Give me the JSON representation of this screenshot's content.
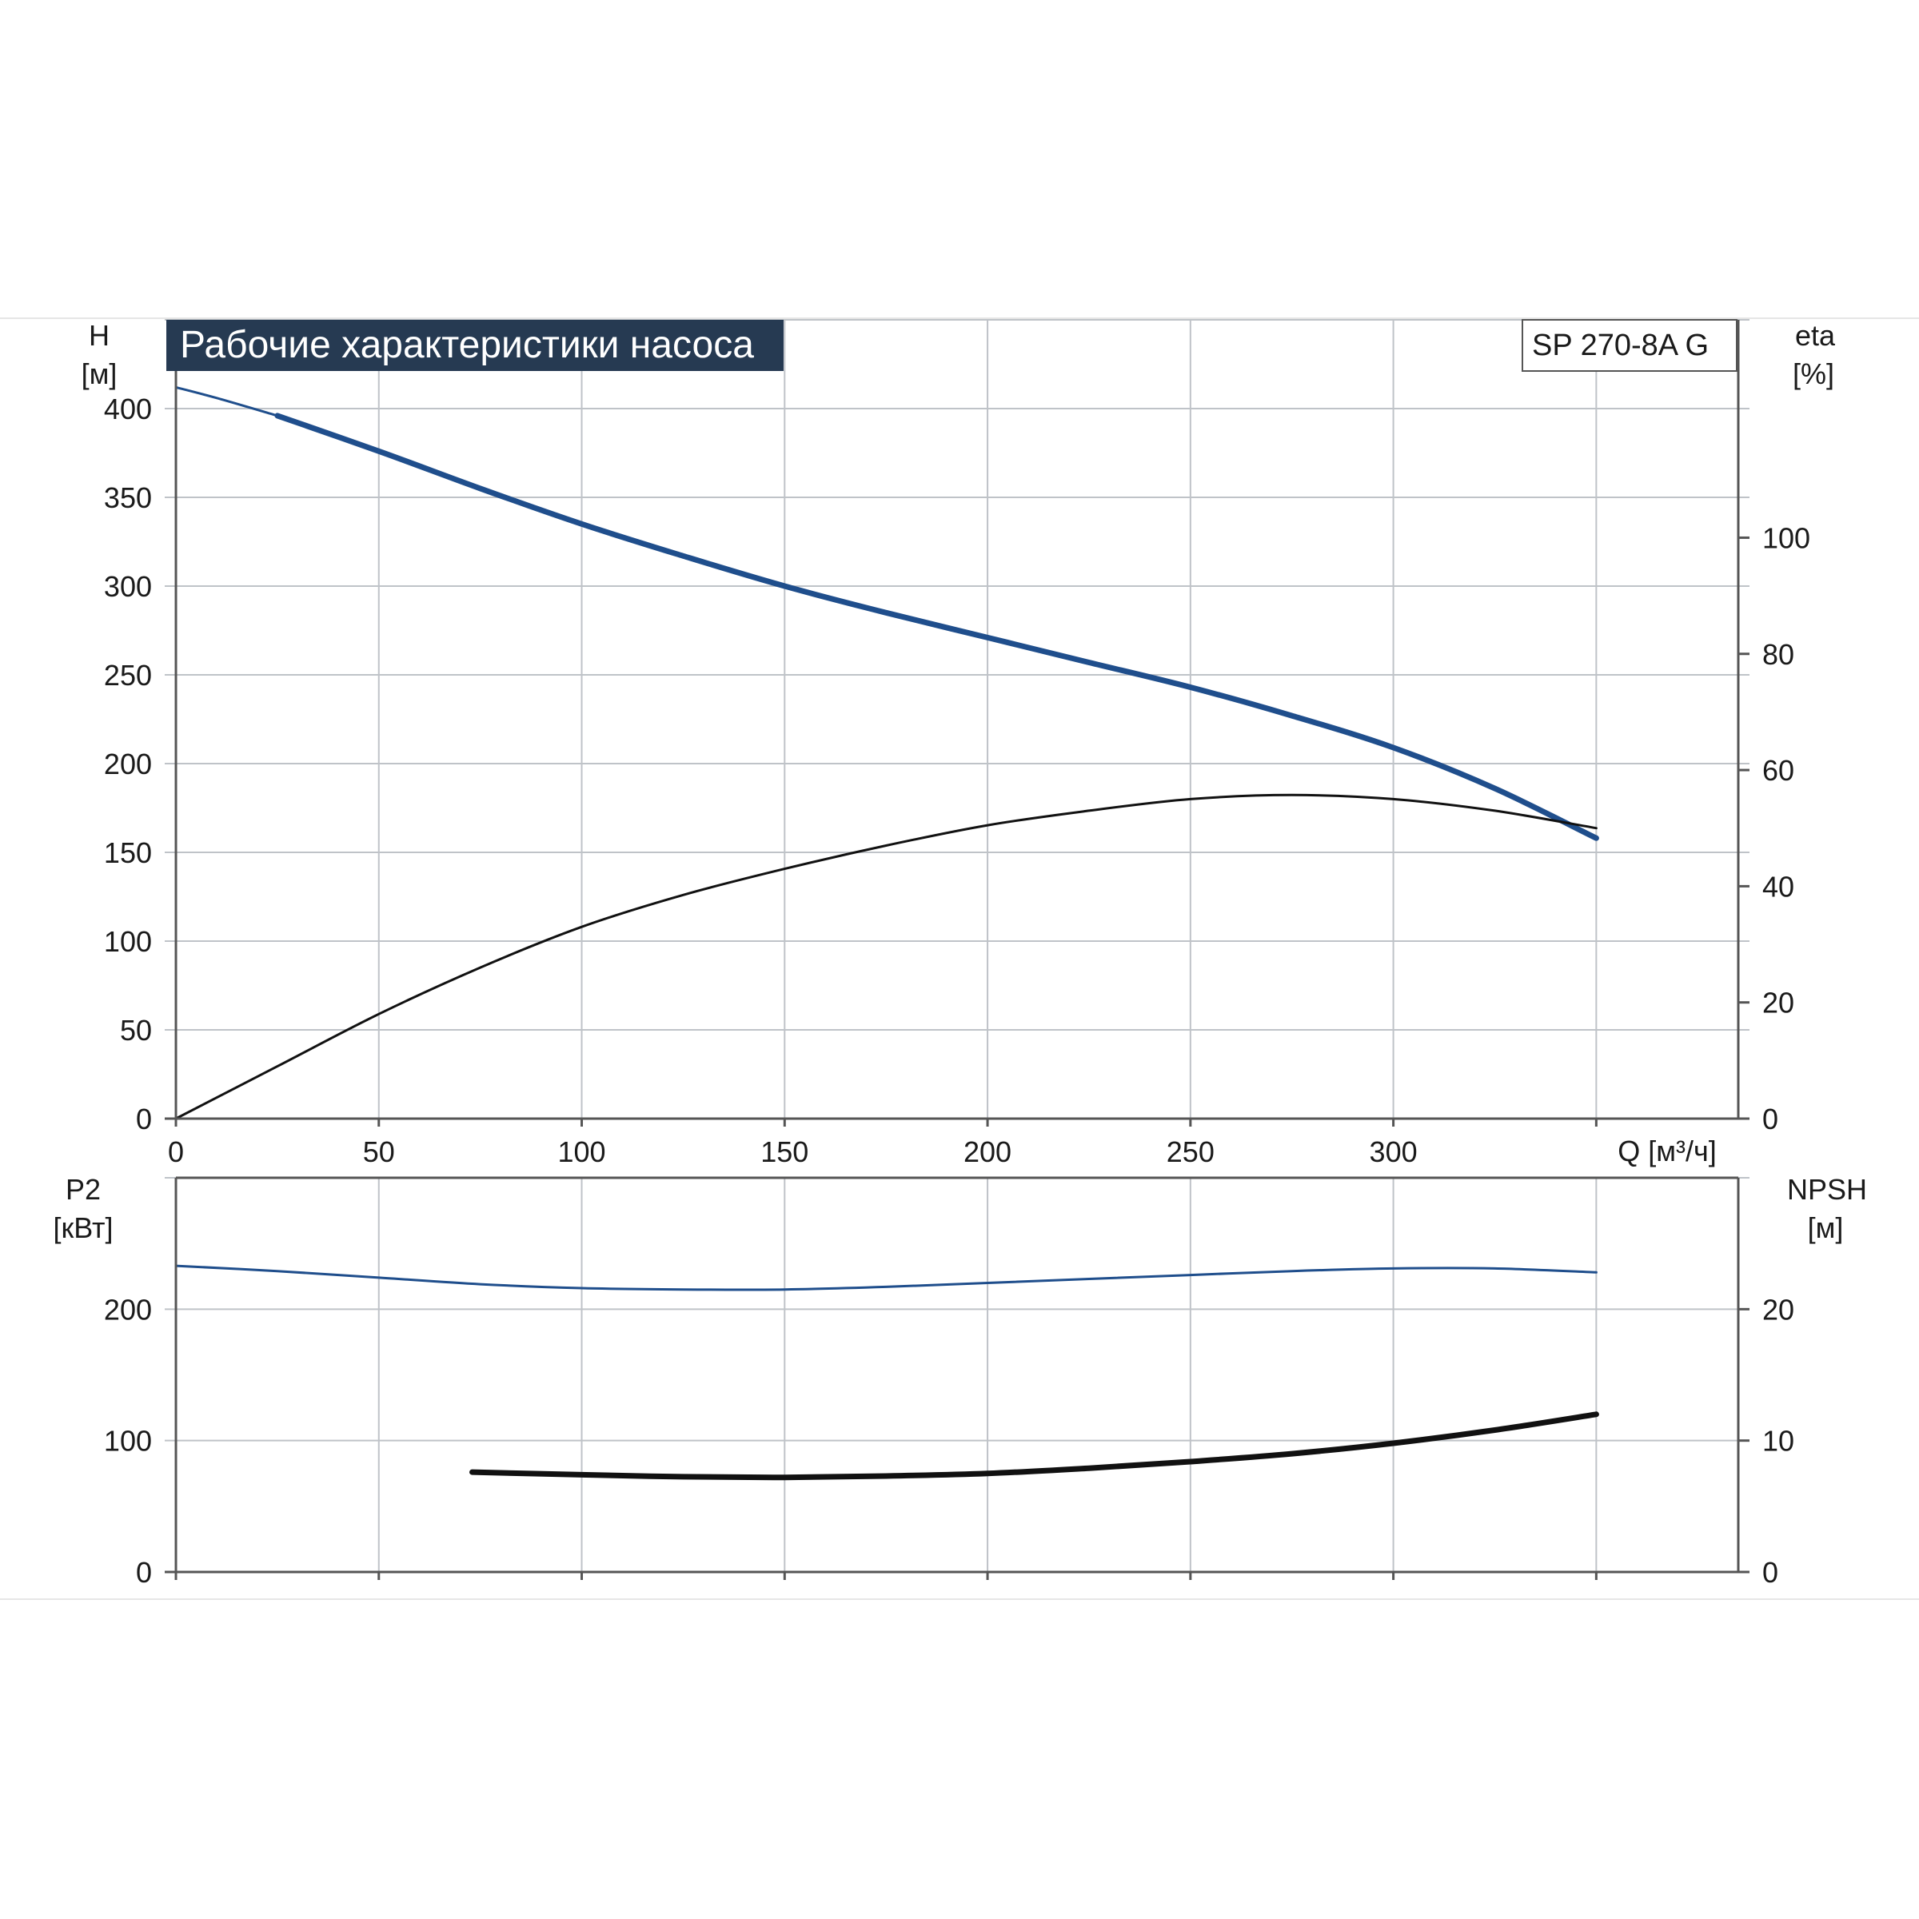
{
  "chart_title": "Рабочие характеристики насоса",
  "model_label": "SP 270-8A G",
  "colors": {
    "blue_curve": "#1f4e8c",
    "black_curve": "#111111",
    "grid": "#bfc3c8",
    "axis": "#555555",
    "title_bg": "#263a52"
  },
  "chart_data": [
    {
      "type": "line",
      "title": "Рабочие характеристики насоса",
      "xlabel": "Q [м³/ч]",
      "xlim": [
        0,
        385
      ],
      "x_ticks": [
        0,
        50,
        100,
        150,
        200,
        250,
        300
      ],
      "x_tick_labels": [
        "0",
        "50",
        "100",
        "150",
        "200",
        "250",
        "300"
      ],
      "y_left_label": [
        "H",
        "[м]"
      ],
      "y_left_lim": [
        0,
        450
      ],
      "y_left_ticks": [
        0,
        50,
        100,
        150,
        200,
        250,
        300,
        350,
        400
      ],
      "y_left_tick_labels": [
        "0",
        "50",
        "100",
        "150",
        "200",
        "250",
        "300",
        "350",
        "400"
      ],
      "y_right_label": [
        "eta",
        "[%]"
      ],
      "y_right_lim": [
        0,
        137.5
      ],
      "y_right_ticks": [
        0,
        20,
        40,
        60,
        80,
        100
      ],
      "y_right_tick_labels": [
        "0",
        "20",
        "40",
        "60",
        "80",
        "100"
      ],
      "grid": true,
      "series": [
        {
          "axis": "left",
          "color": "#1f4e8c",
          "style": "thin",
          "x": [
            0,
            10,
            25
          ],
          "y": [
            412,
            406,
            396
          ]
        },
        {
          "axis": "left",
          "color": "#1f4e8c",
          "style": "thick",
          "x": [
            25,
            50,
            75,
            100,
            125,
            150,
            175,
            200,
            225,
            250,
            275,
            300,
            325,
            350
          ],
          "y": [
            396,
            376,
            355,
            335,
            317,
            300,
            285,
            271,
            257,
            243,
            227,
            209,
            186,
            158
          ]
        },
        {
          "axis": "right",
          "color": "#111111",
          "style": "thin",
          "x": [
            0,
            25,
            50,
            75,
            100,
            125,
            150,
            175,
            200,
            225,
            250,
            275,
            300,
            325,
            350
          ],
          "y": [
            0,
            9,
            18,
            26,
            33,
            38.5,
            43,
            47,
            50.5,
            53,
            55,
            55.7,
            55,
            53,
            50
          ]
        }
      ]
    },
    {
      "type": "line",
      "xlim": [
        0,
        385
      ],
      "x_ticks": [
        0,
        50,
        100,
        150,
        200,
        250,
        300
      ],
      "y_left_label": [
        "P2",
        "[кВт]"
      ],
      "y_left_lim": [
        0,
        300
      ],
      "y_left_ticks": [
        0,
        100,
        200
      ],
      "y_left_tick_labels": [
        "0",
        "100",
        "200"
      ],
      "y_right_label": [
        "NPSH",
        "[м]"
      ],
      "y_right_lim": [
        0,
        30
      ],
      "y_right_ticks": [
        0,
        10,
        20
      ],
      "y_right_tick_labels": [
        "0",
        "10",
        "20"
      ],
      "grid": true,
      "series": [
        {
          "axis": "left",
          "color": "#1f4e8c",
          "style": "thin",
          "x": [
            0,
            25,
            50,
            75,
            100,
            125,
            150,
            175,
            200,
            225,
            250,
            275,
            300,
            325,
            350
          ],
          "y": [
            233,
            229,
            224,
            219,
            216,
            215,
            215,
            217,
            220,
            223,
            226,
            229,
            231,
            231,
            228
          ]
        },
        {
          "axis": "right",
          "color": "#111111",
          "style": "thick",
          "x": [
            73,
            100,
            125,
            150,
            175,
            200,
            225,
            250,
            275,
            300,
            325,
            350
          ],
          "y": [
            7.6,
            7.4,
            7.25,
            7.2,
            7.3,
            7.5,
            7.9,
            8.4,
            9.0,
            9.8,
            10.8,
            12.0
          ]
        }
      ]
    }
  ]
}
